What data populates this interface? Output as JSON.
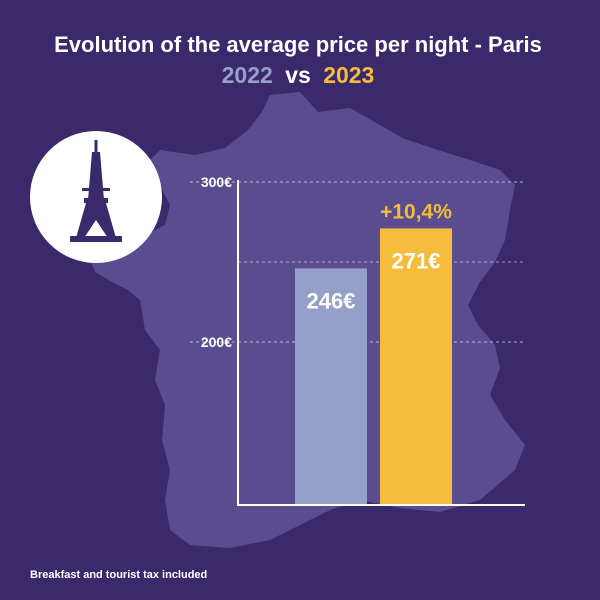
{
  "colors": {
    "background": "#3b2a6b",
    "map": "#5a4d8f",
    "series_2022": "#94a0c8",
    "series_2023": "#f5bc3e",
    "axis": "#ffffff"
  },
  "icons": {
    "badge": "eiffel-tower-icon"
  },
  "header": {
    "title": "Evolution of the average price per night - Paris",
    "year_a": "2022",
    "vs": "vs",
    "year_b": "2023"
  },
  "footnote": "Breakfast and tourist tax included",
  "chart_data": {
    "type": "bar",
    "title": "Evolution of the average price per night - Paris",
    "subtitle": "2022 vs 2023",
    "categories": [
      "2022",
      "2023"
    ],
    "values": [
      246,
      271
    ],
    "value_labels": [
      "246€",
      "271€"
    ],
    "change_label": "+10,4%",
    "ylim": [
      100,
      300
    ],
    "yticks": [
      200,
      300
    ],
    "ytick_labels": [
      "200€",
      "300€"
    ],
    "grid": "dashed, horizontal",
    "legend": "none",
    "bar_colors": [
      "#94a0c8",
      "#f5bc3e"
    ]
  }
}
